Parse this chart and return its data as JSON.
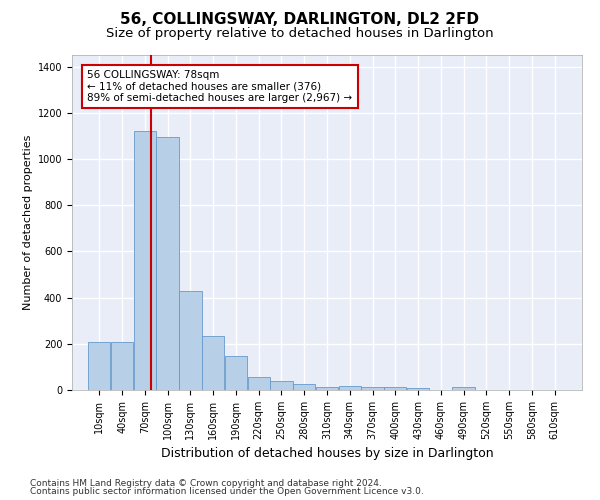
{
  "title": "56, COLLINGSWAY, DARLINGTON, DL2 2FD",
  "subtitle": "Size of property relative to detached houses in Darlington",
  "xlabel": "Distribution of detached houses by size in Darlington",
  "ylabel": "Number of detached properties",
  "bar_labels": [
    "10sqm",
    "40sqm",
    "70sqm",
    "100sqm",
    "130sqm",
    "160sqm",
    "190sqm",
    "220sqm",
    "250sqm",
    "280sqm",
    "310sqm",
    "340sqm",
    "370sqm",
    "400sqm",
    "430sqm",
    "460sqm",
    "490sqm",
    "520sqm",
    "550sqm",
    "580sqm",
    "610sqm"
  ],
  "bar_values": [
    207,
    207,
    1120,
    1095,
    430,
    232,
    148,
    58,
    38,
    25,
    12,
    18,
    15,
    15,
    8,
    0,
    12,
    0,
    0,
    0,
    0
  ],
  "bar_color": "#b8cfe8",
  "bar_edge_color": "#6699cc",
  "bg_color": "#e8edf8",
  "grid_color": "#ffffff",
  "vline_x_index": 2,
  "vline_color": "#cc0000",
  "annotation_text": "56 COLLINGSWAY: 78sqm\n← 11% of detached houses are smaller (376)\n89% of semi-detached houses are larger (2,967) →",
  "annotation_box_color": "#cc0000",
  "ylim": [
    0,
    1450
  ],
  "yticks": [
    0,
    200,
    400,
    600,
    800,
    1000,
    1200,
    1400
  ],
  "footnote1": "Contains HM Land Registry data © Crown copyright and database right 2024.",
  "footnote2": "Contains public sector information licensed under the Open Government Licence v3.0.",
  "title_fontsize": 11,
  "subtitle_fontsize": 9.5,
  "xlabel_fontsize": 9,
  "ylabel_fontsize": 8,
  "tick_fontsize": 7,
  "footnote_fontsize": 6.5,
  "annotation_fontsize": 7.5
}
